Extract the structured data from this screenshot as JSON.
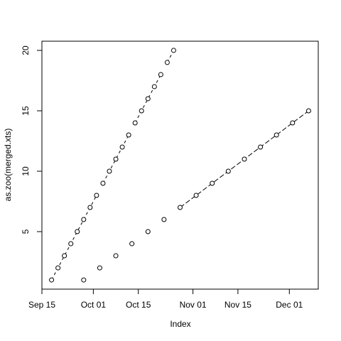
{
  "chart_data": {
    "type": "line",
    "xlabel": "Index",
    "ylabel": "as.zoo(merged.xts)",
    "xlim": [
      "Sep 15",
      "Dec 10"
    ],
    "xticks": [
      "Sep 15",
      "Oct 01",
      "Oct 15",
      "Nov 01",
      "Nov 15",
      "Dec 01"
    ],
    "ylim": [
      0.24,
      20.76
    ],
    "yticks": [
      5,
      10,
      15,
      20
    ],
    "marker": "circle",
    "series": [
      {
        "color": "#000000",
        "linestyle": "dashed",
        "x": [
          "Sep 18",
          "Sep 20",
          "Sep 22",
          "Sep 24",
          "Sep 26",
          "Sep 28",
          "Sep 30",
          "Oct 02",
          "Oct 04",
          "Oct 06",
          "Oct 08",
          "Oct 10",
          "Oct 12",
          "Oct 14",
          "Oct 16",
          "Oct 18",
          "Oct 20",
          "Oct 22",
          "Oct 24",
          "Oct 26"
        ],
        "values": [
          1,
          2,
          3,
          4,
          5,
          6,
          7,
          8,
          9,
          10,
          11,
          12,
          13,
          14,
          15,
          16,
          17,
          18,
          19,
          20
        ]
      },
      {
        "color": "#000000",
        "linestyle": "longdash",
        "x": [
          "Sep 28",
          "Oct 03",
          "Oct 08",
          "Oct 13",
          "Oct 18",
          "Oct 23",
          "Oct 28",
          "Nov 02",
          "Nov 07",
          "Nov 12",
          "Nov 17",
          "Nov 22",
          "Nov 27",
          "Dec 02",
          "Dec 07"
        ],
        "values": [
          1,
          2,
          3,
          4,
          5,
          6,
          7,
          8,
          9,
          10,
          11,
          12,
          13,
          14,
          15
        ]
      }
    ]
  }
}
